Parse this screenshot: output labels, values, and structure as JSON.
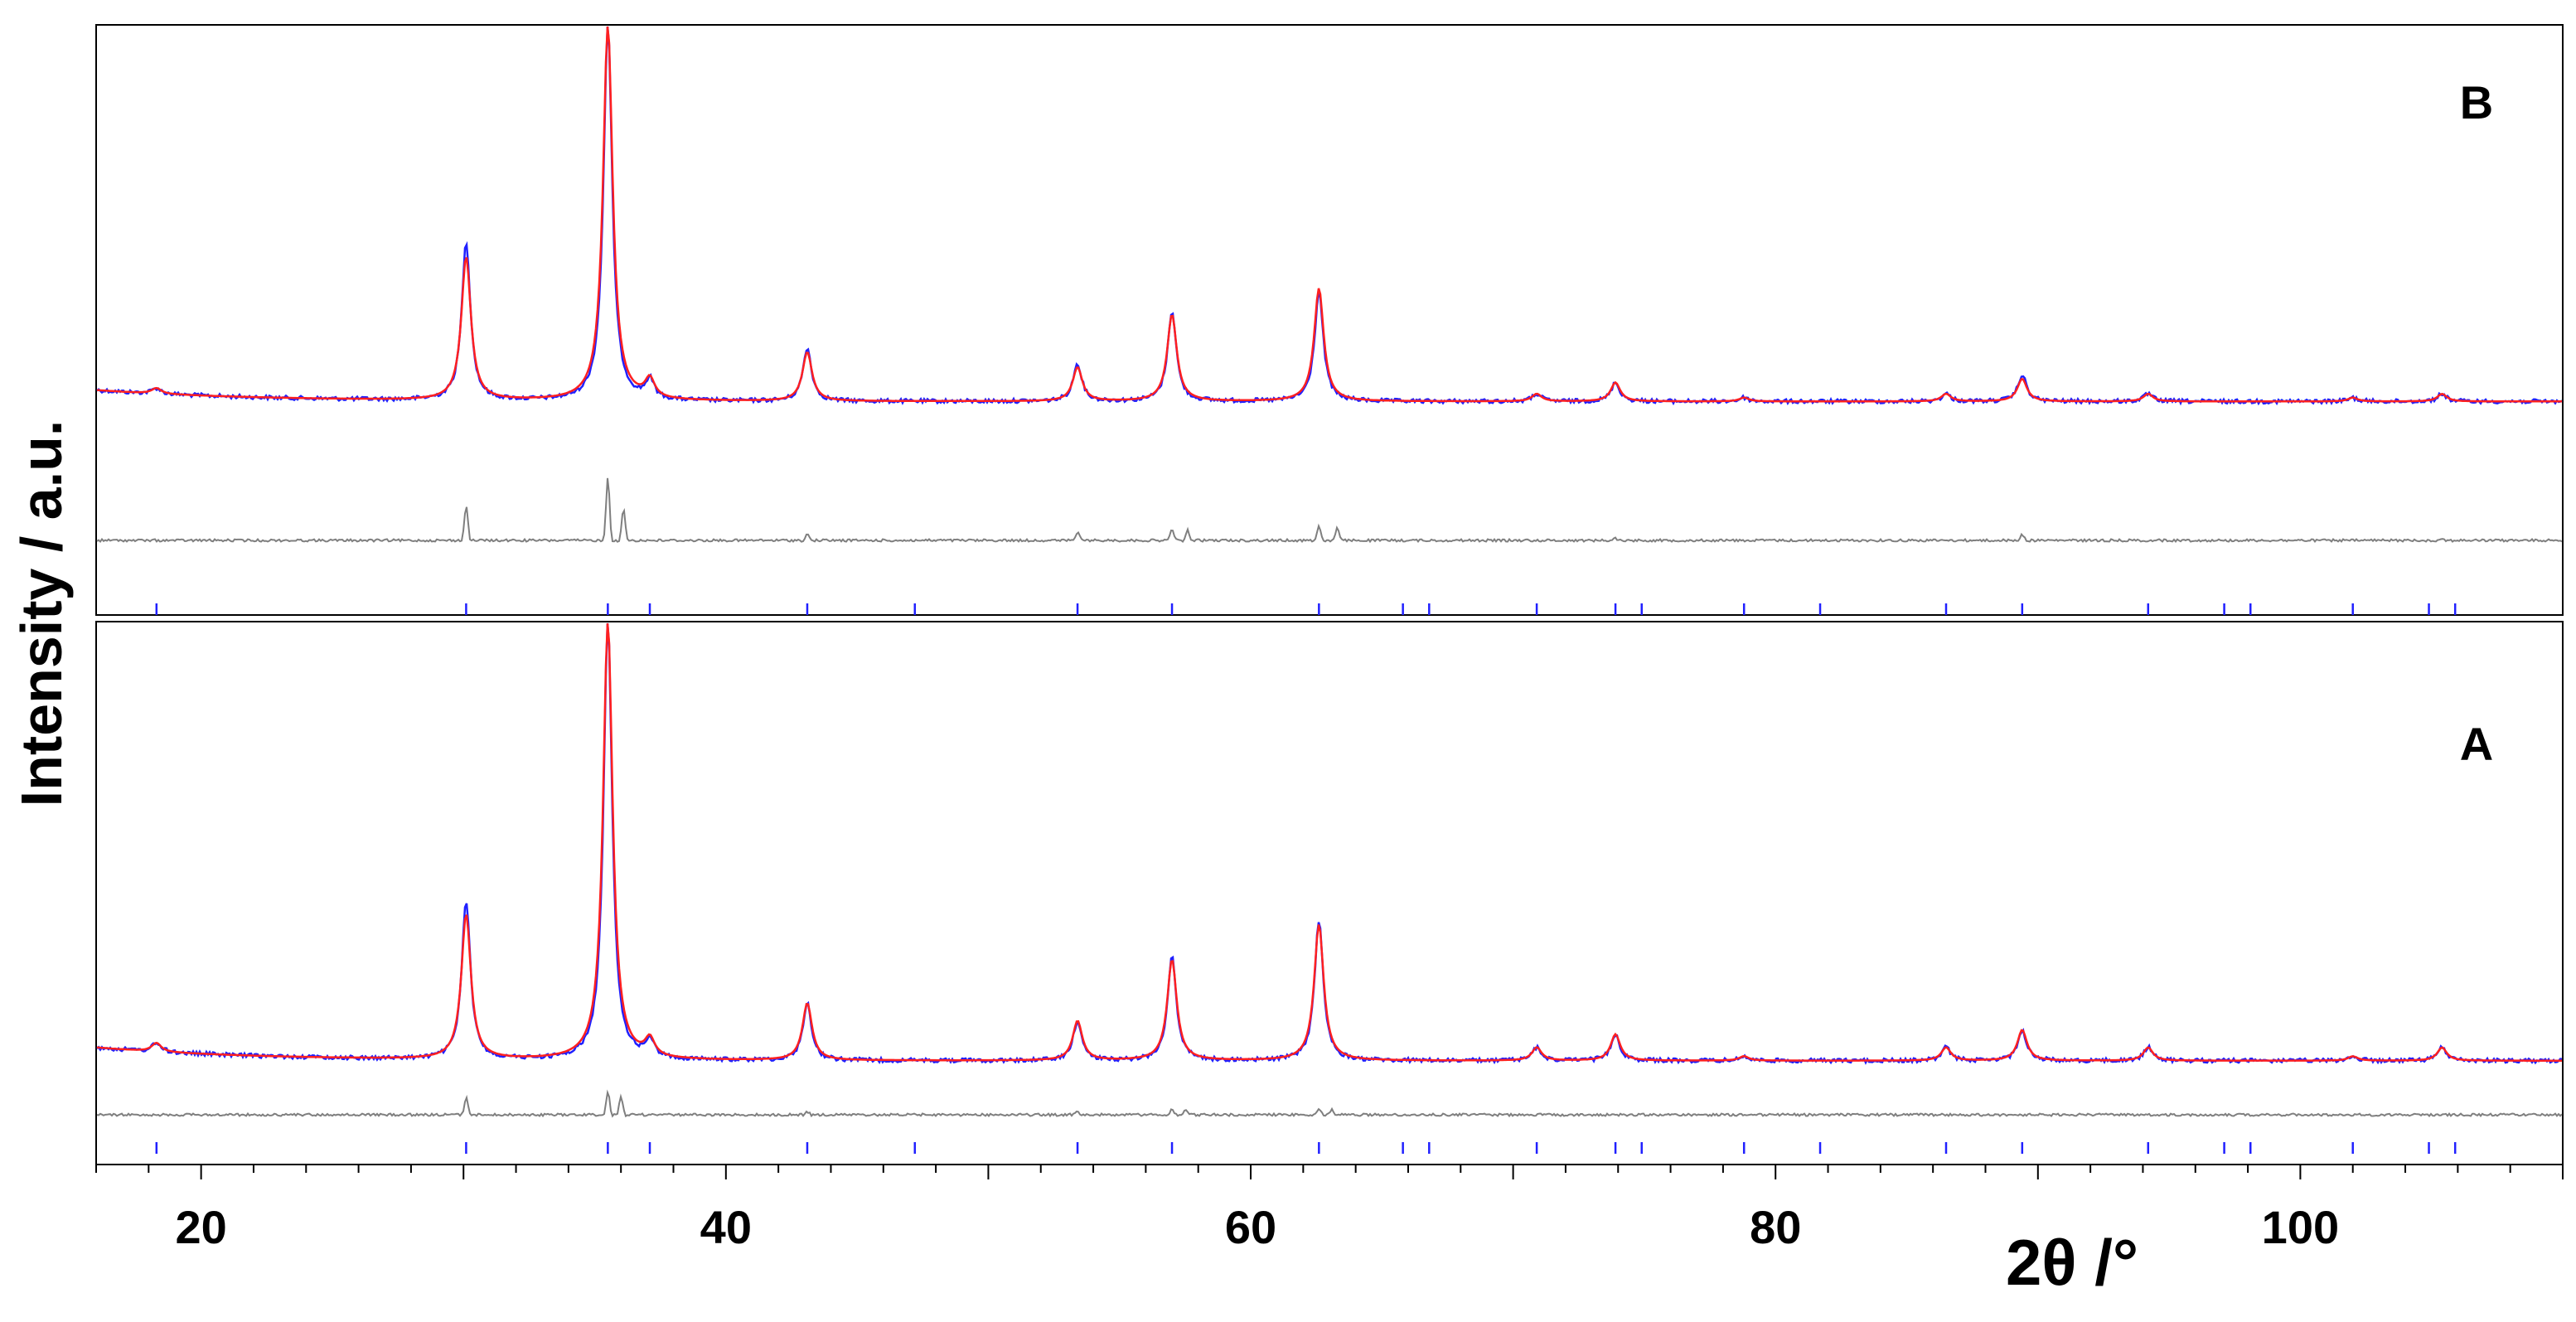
{
  "chart_data": {
    "type": "line",
    "xlabel": "2θ /°",
    "ylabel": "Intensity / a.u.",
    "xlim": [
      16,
      110
    ],
    "x_ticks": [
      "20",
      "40",
      "60",
      "80",
      "100"
    ],
    "colors": {
      "observed": "#2020ff",
      "calculated": "#ff2020",
      "difference": "#7f7f7f",
      "reflections": "#2020ff"
    },
    "reflection_positions": [
      18.3,
      30.1,
      35.5,
      37.1,
      43.1,
      47.2,
      53.4,
      57.0,
      62.6,
      65.8,
      66.8,
      70.9,
      73.9,
      74.9,
      78.8,
      81.7,
      86.5,
      89.4,
      94.2,
      97.1,
      98.1,
      102.0,
      104.9,
      105.9
    ],
    "panels": [
      {
        "label": "B",
        "series": [
          {
            "name": "",
            "role": "observed",
            "type": "peaks",
            "peaks": [
              [
                18.3,
                0.015
              ],
              [
                30.1,
                0.42
              ],
              [
                35.5,
                1.0
              ],
              [
                37.1,
                0.05
              ],
              [
                43.1,
                0.14
              ],
              [
                53.4,
                0.1
              ],
              [
                57.0,
                0.24
              ],
              [
                62.6,
                0.29
              ],
              [
                70.9,
                0.02
              ],
              [
                73.9,
                0.05
              ],
              [
                78.8,
                0.01
              ],
              [
                86.5,
                0.02
              ],
              [
                89.4,
                0.07
              ],
              [
                94.2,
                0.02
              ],
              [
                102.0,
                0.01
              ],
              [
                105.4,
                0.02
              ]
            ]
          },
          {
            "name": "",
            "role": "calculated",
            "type": "peaks",
            "peaks": [
              [
                18.3,
                0.015
              ],
              [
                30.1,
                0.38
              ],
              [
                35.5,
                1.0
              ],
              [
                37.1,
                0.05
              ],
              [
                43.1,
                0.13
              ],
              [
                53.4,
                0.09
              ],
              [
                57.0,
                0.23
              ],
              [
                62.6,
                0.3
              ],
              [
                70.9,
                0.02
              ],
              [
                73.9,
                0.05
              ],
              [
                78.8,
                0.01
              ],
              [
                86.5,
                0.02
              ],
              [
                89.4,
                0.06
              ],
              [
                94.2,
                0.02
              ],
              [
                102.0,
                0.01
              ],
              [
                105.4,
                0.02
              ]
            ]
          },
          {
            "name": "",
            "role": "difference",
            "type": "difference",
            "features": [
              [
                30.1,
                0.28
              ],
              [
                35.5,
                0.85
              ],
              [
                36.1,
                0.25
              ],
              [
                43.1,
                0.08
              ],
              [
                53.4,
                0.07
              ],
              [
                57.0,
                0.16
              ],
              [
                57.6,
                0.08
              ],
              [
                62.6,
                0.2
              ],
              [
                63.3,
                0.1
              ],
              [
                73.9,
                0.03
              ],
              [
                89.4,
                0.05
              ],
              [
                105.4,
                0.02
              ]
            ]
          }
        ]
      },
      {
        "label": "A",
        "series": [
          {
            "name": "",
            "role": "observed",
            "type": "peaks",
            "peaks": [
              [
                18.3,
                0.02
              ],
              [
                30.1,
                0.36
              ],
              [
                35.5,
                1.0
              ],
              [
                37.1,
                0.04
              ],
              [
                43.1,
                0.13
              ],
              [
                53.4,
                0.09
              ],
              [
                57.0,
                0.24
              ],
              [
                62.6,
                0.32
              ],
              [
                70.9,
                0.03
              ],
              [
                73.9,
                0.06
              ],
              [
                78.8,
                0.01
              ],
              [
                86.5,
                0.03
              ],
              [
                89.4,
                0.07
              ],
              [
                94.2,
                0.03
              ],
              [
                102.0,
                0.01
              ],
              [
                105.4,
                0.03
              ]
            ]
          },
          {
            "name": "",
            "role": "calculated",
            "type": "peaks",
            "peaks": [
              [
                18.3,
                0.02
              ],
              [
                30.1,
                0.33
              ],
              [
                35.5,
                1.0
              ],
              [
                37.1,
                0.04
              ],
              [
                43.1,
                0.13
              ],
              [
                53.4,
                0.09
              ],
              [
                57.0,
                0.23
              ],
              [
                62.6,
                0.31
              ],
              [
                70.9,
                0.03
              ],
              [
                73.9,
                0.06
              ],
              [
                78.8,
                0.01
              ],
              [
                86.5,
                0.03
              ],
              [
                89.4,
                0.07
              ],
              [
                94.2,
                0.03
              ],
              [
                102.0,
                0.01
              ],
              [
                105.4,
                0.03
              ]
            ]
          },
          {
            "name": "",
            "role": "difference",
            "type": "difference",
            "features": [
              [
                30.1,
                0.2
              ],
              [
                35.5,
                0.45
              ],
              [
                36.0,
                0.2
              ],
              [
                43.1,
                0.06
              ],
              [
                53.4,
                0.03
              ],
              [
                57.0,
                0.1
              ],
              [
                57.5,
                0.06
              ],
              [
                62.6,
                0.12
              ],
              [
                63.1,
                0.06
              ]
            ]
          }
        ]
      }
    ]
  }
}
